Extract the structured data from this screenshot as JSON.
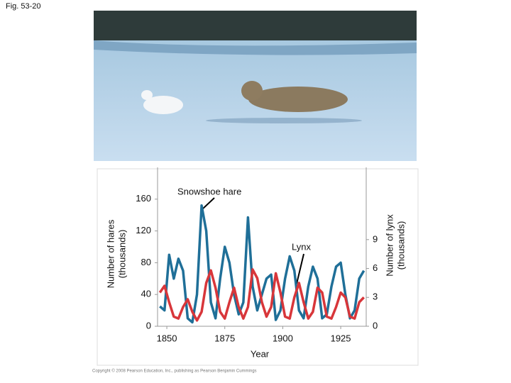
{
  "figure_label": "Fig. 53-20",
  "copyright": "Copyright © 2008 Pearson Education, Inc., publishing as Pearson Benjamin Cummings",
  "chart_data": {
    "type": "line",
    "xlabel": "Year",
    "ylabel": [
      "Number of hares",
      "(thousands)"
    ],
    "y2label": [
      "Number of lynx",
      "(thousands)"
    ],
    "annotations": [
      "Snowshoe hare",
      "Lynx"
    ],
    "x": [
      1847,
      1849,
      1851,
      1853,
      1855,
      1857,
      1859,
      1861,
      1863,
      1865,
      1867,
      1869,
      1871,
      1873,
      1875,
      1877,
      1879,
      1881,
      1883,
      1885,
      1887,
      1889,
      1891,
      1893,
      1895,
      1897,
      1899,
      1901,
      1903,
      1905,
      1907,
      1909,
      1911,
      1913,
      1915,
      1917,
      1919,
      1921,
      1923,
      1925,
      1927,
      1929,
      1931,
      1933,
      1935
    ],
    "series": [
      {
        "name": "Snowshoe hare",
        "color": "#1f6f98",
        "axis": "y",
        "values": [
          25,
          20,
          90,
          60,
          85,
          70,
          10,
          5,
          40,
          152,
          120,
          30,
          10,
          60,
          100,
          80,
          40,
          15,
          30,
          137,
          50,
          20,
          40,
          60,
          65,
          8,
          20,
          60,
          88,
          70,
          20,
          10,
          50,
          75,
          60,
          10,
          15,
          50,
          75,
          80,
          40,
          10,
          20,
          60,
          70
        ]
      },
      {
        "name": "Lynx",
        "color": "#d8363a",
        "axis": "y2",
        "values": [
          3.5,
          4.2,
          2.5,
          1.0,
          0.8,
          2.0,
          2.8,
          1.5,
          0.6,
          1.5,
          4.5,
          5.8,
          4.0,
          1.5,
          0.8,
          2.5,
          4.0,
          2.0,
          0.8,
          2.0,
          5.9,
          5.0,
          2.5,
          1.0,
          2.0,
          5.5,
          3.5,
          1.0,
          0.8,
          3.0,
          4.5,
          2.5,
          0.8,
          1.5,
          4.0,
          3.5,
          1.0,
          0.8,
          2.0,
          3.5,
          3.0,
          1.0,
          0.8,
          2.5,
          3.0
        ]
      }
    ],
    "xlim": [
      1846,
      1936
    ],
    "xticks": [
      1850,
      1875,
      1900,
      1925
    ],
    "ylim": [
      0,
      200
    ],
    "yticks": [
      0,
      40,
      80,
      120,
      160
    ],
    "y2lim": [
      0,
      16.5
    ],
    "y2ticks": [
      0,
      3,
      6,
      9
    ],
    "grid": false
  }
}
